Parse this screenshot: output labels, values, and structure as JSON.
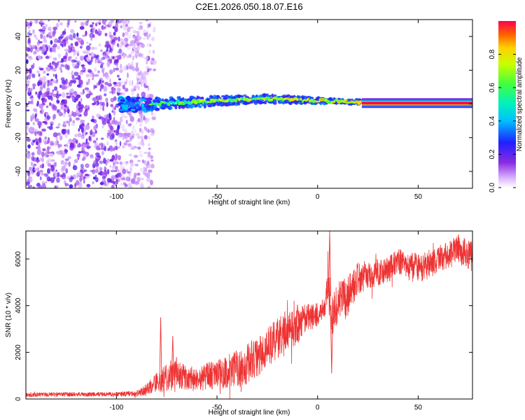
{
  "figure": {
    "title": "C2E1.2026.050.18.07.E16"
  },
  "chart_data": [
    {
      "type": "heatmap",
      "name": "spectrogram",
      "title": "C2E1.2026.050.18.07.E16",
      "xlabel": "Height of straight line (km)",
      "ylabel": "Frequency (Hz)",
      "xlim": [
        -145,
        77
      ],
      "ylim": [
        -50,
        50
      ],
      "xticks": [
        -100,
        -50,
        0,
        50
      ],
      "xtick_labels": [
        "-100",
        "-50",
        "0",
        "50"
      ],
      "yticks": [
        -40,
        -20,
        0,
        20,
        40
      ],
      "ytick_labels": [
        "-40",
        "-20",
        "0",
        "20",
        "40"
      ],
      "colorbar": {
        "label": "Normalized spectral amplitude",
        "range": [
          0,
          1
        ],
        "ticks": [
          0.0,
          0.2,
          0.4,
          0.6,
          0.8
        ],
        "tick_labels": [
          "0.0",
          "0.2",
          "0.4",
          "0.6",
          "0.8"
        ]
      },
      "regions": [
        {
          "name": "broadband noise",
          "x_range": [
            -145,
            -83
          ],
          "freq_range": [
            -50,
            50
          ],
          "amplitude": 0.12
        },
        {
          "name": "signal onset",
          "x_range": [
            -98,
            -83
          ],
          "freq_range": [
            -4,
            4
          ],
          "amplitude": 0.35
        },
        {
          "name": "drifting tone",
          "x_range": [
            -83,
            22
          ],
          "freq_start": 0,
          "freq_peak": 3,
          "freq_end": 1,
          "amplitude": 0.55
        },
        {
          "name": "steady tone",
          "x_range": [
            22,
            77
          ],
          "freq": 0.5,
          "amplitude": 1.0
        }
      ]
    },
    {
      "type": "line",
      "name": "snr-trace",
      "xlabel": "Height of straight line (km)",
      "ylabel": "SNR (10 * v/v)",
      "xlim": [
        -145,
        77
      ],
      "ylim": [
        0,
        7200
      ],
      "xticks": [
        -100,
        -50,
        0,
        50
      ],
      "xtick_labels": [
        "-100",
        "-50",
        "0",
        "50"
      ],
      "yticks": [
        0,
        2000,
        4000,
        6000
      ],
      "ytick_labels": [
        "0",
        "2000",
        "4000",
        "6000"
      ],
      "series_color": "#ee3333",
      "series": [
        {
          "name": "SNR",
          "x": [
            -145,
            -130,
            -115,
            -100,
            -90,
            -85,
            -80,
            -75,
            -70,
            -65,
            -60,
            -55,
            -50,
            -45,
            -40,
            -35,
            -30,
            -25,
            -20,
            -15,
            -10,
            -5,
            0,
            4,
            5,
            6,
            7,
            10,
            15,
            20,
            25,
            30,
            35,
            40,
            45,
            50,
            55,
            60,
            65,
            70,
            77
          ],
          "mean": [
            180,
            200,
            200,
            210,
            230,
            420,
            700,
            900,
            1050,
            900,
            800,
            1000,
            1000,
            1150,
            1350,
            1500,
            1750,
            2200,
            2600,
            3000,
            3150,
            3500,
            3600,
            3900,
            4700,
            4400,
            3500,
            4100,
            4400,
            5200,
            5300,
            5400,
            5500,
            5900,
            5700,
            5600,
            5700,
            6000,
            6200,
            6400,
            6100
          ],
          "spread": [
            90,
            90,
            90,
            90,
            120,
            250,
            420,
            600,
            650,
            500,
            450,
            600,
            650,
            750,
            850,
            900,
            900,
            850,
            850,
            900,
            800,
            600,
            500,
            500,
            1200,
            900,
            800,
            900,
            900,
            700,
            600,
            600,
            550,
            550,
            600,
            650,
            600,
            550,
            600,
            600,
            650
          ]
        }
      ],
      "peaks": [
        {
          "x": -78,
          "y": 3500
        },
        {
          "x": -72,
          "y": 2700
        },
        {
          "x": -10,
          "y": 4050
        },
        {
          "x": 6,
          "y": 7200
        },
        {
          "x": 7,
          "y": 1100
        },
        {
          "x": 70,
          "y": 7050
        }
      ]
    }
  ]
}
